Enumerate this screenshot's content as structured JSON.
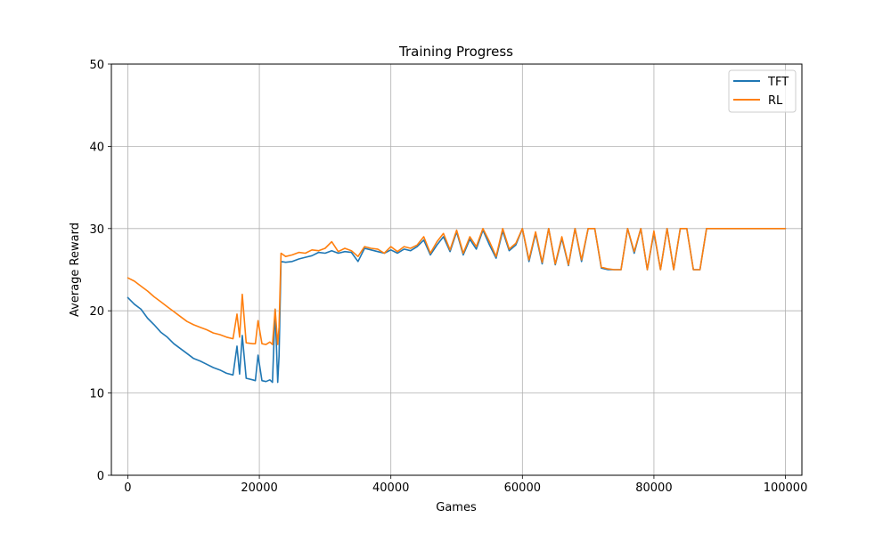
{
  "chart_data": {
    "type": "line",
    "title": "Training Progress",
    "xlabel": "Games",
    "ylabel": "Average Reward",
    "xlim": [
      -2500,
      102500
    ],
    "ylim": [
      0,
      50
    ],
    "xticks": [
      0,
      20000,
      40000,
      60000,
      80000,
      100000
    ],
    "yticks": [
      0,
      10,
      20,
      30,
      40,
      50
    ],
    "grid": true,
    "legend_position": "top-right",
    "series": [
      {
        "name": "TFT",
        "color": "#1f77b4",
        "x": [
          0,
          1000,
          2000,
          3000,
          4000,
          5000,
          6000,
          7000,
          8000,
          9000,
          10000,
          11000,
          12000,
          13000,
          14000,
          15000,
          16000,
          16600,
          17000,
          17400,
          18000,
          19000,
          19400,
          19800,
          20400,
          21000,
          21600,
          22000,
          22400,
          22800,
          23000,
          23300,
          24000,
          25000,
          26000,
          27000,
          28000,
          29000,
          30000,
          31000,
          32000,
          33000,
          34000,
          35000,
          36000,
          37000,
          38000,
          39000,
          40000,
          41000,
          42000,
          43000,
          44000,
          45000,
          46000,
          47000,
          48000,
          49000,
          50000,
          51000,
          52000,
          53000,
          54000,
          55000,
          56000,
          57000,
          58000,
          59000,
          60000,
          61000,
          62000,
          63000,
          64000,
          65000,
          66000,
          67000,
          68000,
          69000,
          70000,
          71000,
          72000,
          73000,
          74000,
          75000,
          76000,
          77000,
          78000,
          79000,
          80000,
          81000,
          82000,
          83000,
          84000,
          85000,
          86000,
          87000,
          88000,
          90000,
          92000,
          94000,
          96000,
          98000,
          100000
        ],
        "values": [
          21.6,
          20.8,
          20.2,
          19.1,
          18.3,
          17.4,
          16.8,
          16.0,
          15.4,
          14.8,
          14.2,
          13.9,
          13.5,
          13.1,
          12.8,
          12.4,
          12.2,
          15.7,
          12.3,
          17.0,
          11.8,
          11.6,
          11.5,
          14.6,
          11.5,
          11.4,
          11.6,
          11.3,
          20.2,
          11.3,
          14.5,
          26.0,
          25.9,
          26.0,
          26.3,
          26.5,
          26.7,
          27.1,
          27.0,
          27.3,
          27.0,
          27.2,
          27.1,
          26.0,
          27.6,
          27.4,
          27.2,
          27.0,
          27.4,
          27.0,
          27.5,
          27.3,
          27.8,
          28.6,
          26.8,
          28.0,
          29.0,
          27.2,
          29.6,
          26.8,
          28.7,
          27.5,
          29.8,
          28.0,
          26.4,
          29.7,
          27.3,
          28.0,
          30.0,
          26.0,
          29.4,
          25.7,
          30.0,
          25.6,
          28.8,
          25.5,
          30.0,
          26.0,
          30.0,
          30.0,
          25.2,
          25.0,
          25.0,
          25.0,
          30.0,
          27.0,
          30.0,
          25.0,
          29.5,
          25.0,
          30.0,
          25.0,
          30.0,
          30.0,
          25.0,
          25.0,
          30.0,
          30.0,
          30.0,
          30.0,
          30.0,
          30.0,
          30.0
        ]
      },
      {
        "name": "RL",
        "color": "#ff7f0e",
        "x": [
          0,
          1000,
          2000,
          3000,
          4000,
          5000,
          6000,
          7000,
          8000,
          9000,
          10000,
          11000,
          12000,
          13000,
          14000,
          15000,
          16000,
          16600,
          17000,
          17400,
          18000,
          19000,
          19400,
          19800,
          20400,
          21000,
          21600,
          22000,
          22400,
          22800,
          23000,
          23300,
          24000,
          25000,
          26000,
          27000,
          28000,
          29000,
          30000,
          31000,
          32000,
          33000,
          34000,
          35000,
          36000,
          37000,
          38000,
          39000,
          40000,
          41000,
          42000,
          43000,
          44000,
          45000,
          46000,
          47000,
          48000,
          49000,
          50000,
          51000,
          52000,
          53000,
          54000,
          55000,
          56000,
          57000,
          58000,
          59000,
          60000,
          61000,
          62000,
          63000,
          64000,
          65000,
          66000,
          67000,
          68000,
          69000,
          70000,
          71000,
          72000,
          73000,
          74000,
          75000,
          76000,
          77000,
          78000,
          79000,
          80000,
          81000,
          82000,
          83000,
          84000,
          85000,
          86000,
          87000,
          88000,
          90000,
          92000,
          94000,
          96000,
          98000,
          100000
        ],
        "values": [
          24.0,
          23.6,
          23.0,
          22.4,
          21.7,
          21.1,
          20.5,
          19.9,
          19.3,
          18.7,
          18.3,
          18.0,
          17.7,
          17.3,
          17.1,
          16.8,
          16.6,
          19.6,
          16.8,
          22.0,
          16.1,
          16.0,
          16.0,
          18.8,
          16.0,
          15.9,
          16.2,
          15.9,
          20.2,
          15.9,
          18.0,
          27.0,
          26.6,
          26.8,
          27.1,
          27.0,
          27.4,
          27.3,
          27.6,
          28.4,
          27.2,
          27.6,
          27.3,
          26.6,
          27.8,
          27.6,
          27.5,
          27.0,
          27.8,
          27.2,
          27.8,
          27.6,
          28.0,
          29.0,
          27.0,
          28.4,
          29.4,
          27.4,
          29.8,
          27.0,
          29.0,
          27.8,
          30.0,
          28.4,
          26.6,
          30.0,
          27.5,
          28.2,
          30.0,
          26.2,
          29.6,
          25.9,
          30.0,
          25.7,
          29.0,
          25.6,
          30.0,
          26.2,
          30.0,
          30.0,
          25.3,
          25.1,
          25.0,
          25.0,
          30.0,
          27.2,
          30.0,
          25.0,
          29.7,
          25.0,
          30.0,
          25.0,
          30.0,
          30.0,
          25.0,
          25.0,
          30.0,
          30.0,
          30.0,
          30.0,
          30.0,
          30.0,
          30.0
        ]
      }
    ]
  }
}
